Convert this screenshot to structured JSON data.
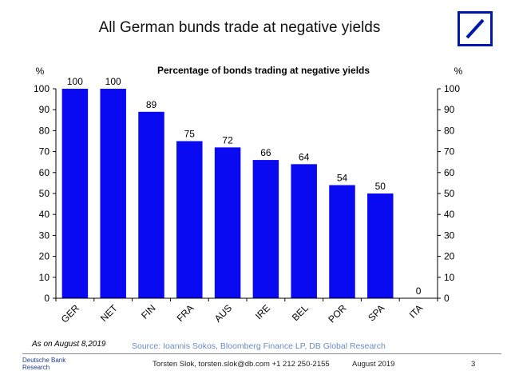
{
  "slide": {
    "title": "All German bunds trade at negative yields",
    "as_of": "As on August 8,2019",
    "source": "Source: Ioannis Sokos, Bloomberg Finance LP,  DB Global Research",
    "brand_line1": "Deutsche Bank",
    "brand_line2": "Research",
    "contact": "Torsten Slok, torsten.slok@db.com  +1 212 250-2155",
    "date": "August 2019",
    "page_number": "3",
    "logo_color": "#0018a8"
  },
  "chart_data": {
    "type": "bar",
    "title": "Percentage of bonds trading at negative yields",
    "ylabel_left": "%",
    "ylabel_right": "%",
    "categories": [
      "GER",
      "NET",
      "FIN",
      "FRA",
      "AUS",
      "IRE",
      "BEL",
      "POR",
      "SPA",
      "ITA"
    ],
    "values": [
      100,
      100,
      89,
      75,
      72,
      66,
      64,
      54,
      50,
      0
    ],
    "ylim": [
      0,
      100
    ],
    "yticks": [
      0,
      10,
      20,
      30,
      40,
      50,
      60,
      70,
      80,
      90,
      100
    ],
    "bar_color": "#0a0af2",
    "grid": false,
    "data_labels": true
  }
}
